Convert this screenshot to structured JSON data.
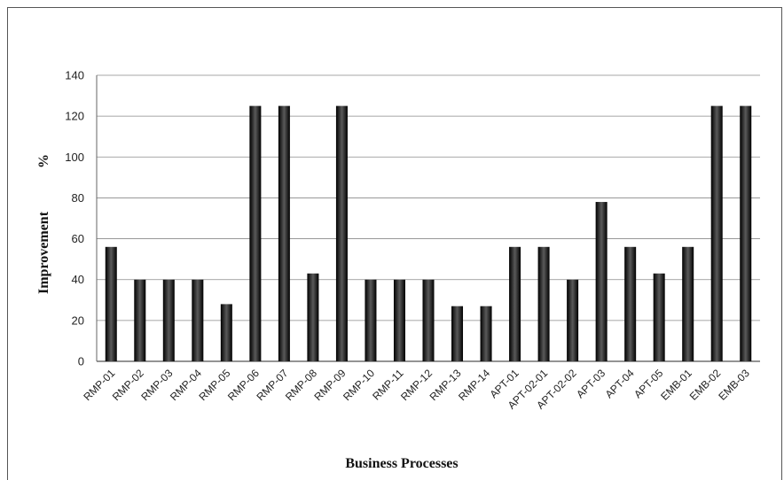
{
  "chart_data": {
    "type": "bar",
    "title": "",
    "xlabel": "Business Processes",
    "ylabel": "Improvement",
    "ylabel_unit": "%",
    "ylim": [
      0,
      140
    ],
    "yticks": [
      0,
      20,
      40,
      60,
      80,
      100,
      120,
      140
    ],
    "grid": true,
    "categories": [
      "RMP-01",
      "RMP-02",
      "RMP-03",
      "RMP-04",
      "RMP-05",
      "RMP-06",
      "RMP-07",
      "RMP-08",
      "RMP-09",
      "RMP-10",
      "RMP-11",
      "RMP-12",
      "RMP-13",
      "RMP-14",
      "APT-01",
      "APT-02-01",
      "APT-02-02",
      "APT-03",
      "APT-04",
      "APT-05",
      "EMB-01",
      "EMB-02",
      "EMB-03"
    ],
    "values": [
      56,
      40,
      40,
      40,
      28,
      125,
      125,
      43,
      125,
      40,
      40,
      40,
      27,
      27,
      56,
      56,
      40,
      78,
      56,
      43,
      56,
      125,
      125
    ],
    "bar_color": "#222222"
  }
}
